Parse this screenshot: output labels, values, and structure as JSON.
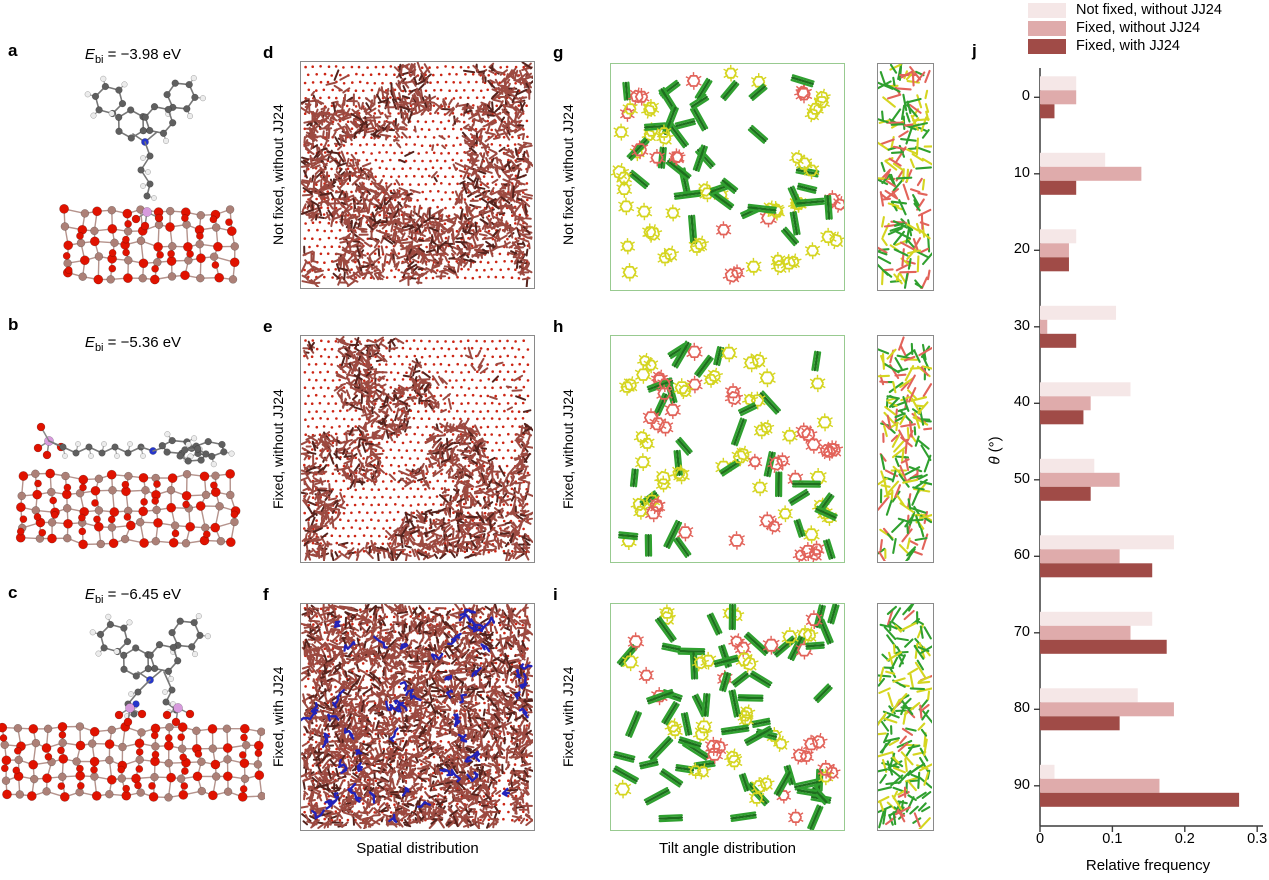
{
  "panels": {
    "a": {
      "letter": "a",
      "binding_energy": {
        "symbol": "E",
        "subscript": "bi",
        "rest": " = −3.98 eV"
      }
    },
    "b": {
      "letter": "b",
      "binding_energy": {
        "symbol": "E",
        "subscript": "bi",
        "rest": " = −5.36 eV"
      }
    },
    "c": {
      "letter": "c",
      "binding_energy": {
        "symbol": "E",
        "subscript": "bi",
        "rest": " = −6.45 eV"
      }
    }
  },
  "spatial_column": {
    "caption": "Spatial distribution",
    "rows": [
      {
        "letter": "d",
        "label": "Not fixed, without JJ24"
      },
      {
        "letter": "e",
        "label": "Fixed, without JJ24"
      },
      {
        "letter": "f",
        "label": "Fixed, with JJ24"
      }
    ]
  },
  "tilt_column": {
    "caption": "Tilt angle distribution",
    "rows": [
      {
        "letter": "g",
        "label": "Not fixed, without JJ24"
      },
      {
        "letter": "h",
        "label": "Fixed, without JJ24"
      },
      {
        "letter": "i",
        "label": "Fixed, with JJ24"
      }
    ]
  },
  "histogram_panel": {
    "letter": "j"
  },
  "chart_data": {
    "type": "bar",
    "orientation": "horizontal",
    "title": "",
    "xlabel": "Relative frequency",
    "ylabel": "θ (°)",
    "ylabel_symbol": "θ",
    "ylabel_units": " (°)",
    "categories": [
      0,
      10,
      20,
      30,
      40,
      50,
      60,
      70,
      80,
      90
    ],
    "series": [
      {
        "name": "Not fixed, without JJ24",
        "color": "#f5e7e7",
        "values": [
          0.05,
          0.09,
          0.05,
          0.105,
          0.125,
          0.075,
          0.185,
          0.155,
          0.135,
          0.02
        ]
      },
      {
        "name": "Fixed, without JJ24",
        "color": "#dfabab",
        "values": [
          0.05,
          0.14,
          0.04,
          0.01,
          0.07,
          0.11,
          0.11,
          0.125,
          0.185,
          0.165
        ]
      },
      {
        "name": "Fixed, with JJ24",
        "color": "#a04b47",
        "values": [
          0.02,
          0.05,
          0.04,
          0.05,
          0.06,
          0.07,
          0.155,
          0.175,
          0.11,
          0.275
        ]
      }
    ],
    "xticks": [
      0,
      0.1,
      0.2,
      0.3
    ],
    "xlim": [
      0,
      0.3
    ],
    "grid": false,
    "legend_position": "top-right"
  },
  "colors": {
    "axis": "#3c3c3c",
    "bar_light": "#f5e7e7",
    "bar_mid": "#dfabab",
    "bar_dark": "#a04b47",
    "lattice_dot": "#cc2514",
    "molecule_red": "#9c4a41",
    "molecule_dark": "#55231d",
    "blue_molecule": "#2222bb",
    "green_molecule": "#2fa02f",
    "green_dark": "#1e6f1e",
    "yellow_molecule": "#d5d520",
    "red_molecule": "#e2635a",
    "box_border_gray": "#8a8a8a",
    "tilt_border_green": "#98ca90",
    "atom_carbon": "#5f5f5f",
    "atom_hydrogen": "#ececec",
    "atom_nitrogen": "#2636cc",
    "atom_oxygen": "#e01200",
    "atom_metal": "#ac8077",
    "atom_phosphorus": "#d79add"
  }
}
